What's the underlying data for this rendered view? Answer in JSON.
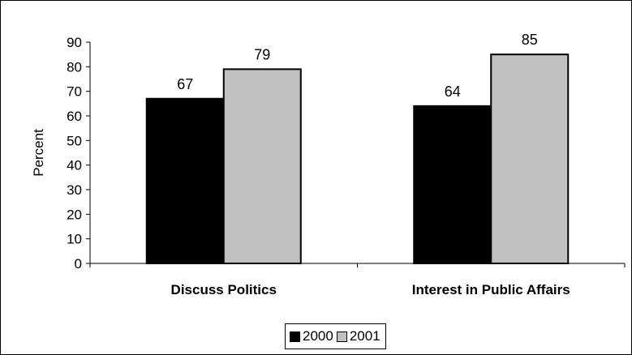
{
  "chart_data": {
    "type": "bar",
    "categories": [
      "Discuss Politics",
      "Interest in Public Affairs"
    ],
    "series": [
      {
        "name": "2000",
        "values": [
          67,
          64
        ],
        "color": "#000000"
      },
      {
        "name": "2001",
        "values": [
          79,
          85
        ],
        "color": "#c0c0c0"
      }
    ],
    "title": "",
    "xlabel": "",
    "ylabel": "Percent",
    "ylim": [
      0,
      90
    ],
    "yticks": [
      0,
      10,
      20,
      30,
      40,
      50,
      60,
      70,
      80,
      90
    ],
    "grid": false,
    "legend_position": "bottom"
  }
}
